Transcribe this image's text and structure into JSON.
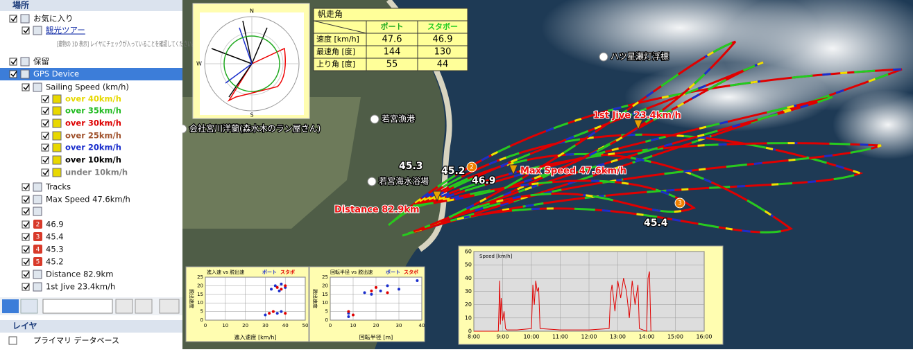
{
  "sidebar": {
    "header": "場所",
    "items": [
      {
        "label": "お気に入り",
        "indent": 0
      },
      {
        "label": "観光ツアー",
        "indent": 1,
        "link": true
      },
      {
        "label": "[建物の 3D 表示] レイヤにチェックが入っていることを確認してください。",
        "indent": 2,
        "note": true
      },
      {
        "label": "保留",
        "indent": 0
      },
      {
        "label": "GPS Device",
        "indent": 0,
        "selected": true
      },
      {
        "label": "Sailing Speed (km/h)",
        "indent": 1
      },
      {
        "label": "over 40km/h",
        "indent": 2,
        "color": "#e6d800"
      },
      {
        "label": "over 35km/h",
        "indent": 2,
        "color": "#22bb22"
      },
      {
        "label": "over 30km/h",
        "indent": 2,
        "color": "#dd0000"
      },
      {
        "label": "over 25km/h",
        "indent": 2,
        "color": "#a0522d"
      },
      {
        "label": "over 20km/h",
        "indent": 2,
        "color": "#1a2ecc"
      },
      {
        "label": "over 10km/h",
        "indent": 2,
        "color": "#000000"
      },
      {
        "label": "under 10km/h",
        "indent": 2,
        "color": "#808080"
      },
      {
        "label": "Tracks",
        "indent": 1
      },
      {
        "label": "Max Speed 47.6km/h",
        "indent": 1
      },
      {
        "label": null,
        "indent": 1
      },
      {
        "label": "46.9",
        "indent": 1,
        "badge": "2"
      },
      {
        "label": "45.4",
        "indent": 1,
        "badge": "3"
      },
      {
        "label": "45.3",
        "indent": 1,
        "badge": "4"
      },
      {
        "label": "45.2",
        "indent": 1,
        "badge": "5"
      },
      {
        "label": "Distance 82.9km",
        "indent": 1
      },
      {
        "label": "1st Jive 23.4km/h",
        "indent": 1
      }
    ],
    "layers_header": "レイヤ",
    "layers_item": "プライマリ データベース"
  },
  "map": {
    "places": [
      {
        "label": "ハツ星瀬灯浮標",
        "x": 870,
        "y": 82
      },
      {
        "label": "若宮漁港",
        "x": 540,
        "y": 172
      },
      {
        "label": "若宮海水浴場",
        "x": 536,
        "y": 262
      },
      {
        "label": "会社宮川洋蘭(森水木のラン屋さん)",
        "x": 263,
        "y": 186
      }
    ],
    "annotations": [
      {
        "label": "1st Jive 23.4km/h",
        "color": "#ee1111"
      },
      {
        "label": "Max Speed 47.6km/h",
        "color": "#ee1111"
      },
      {
        "label": "Distance 82.9km",
        "color": "#ee1111"
      },
      {
        "label": "45.3",
        "color": "#ffffff"
      },
      {
        "label": "45.2",
        "color": "#ffffff"
      },
      {
        "label": "46.9",
        "color": "#ffffff"
      },
      {
        "label": "45.4",
        "color": "#ffffff"
      }
    ],
    "badges": [
      "2",
      "3"
    ]
  },
  "polar": {
    "labels": [
      "N",
      "S",
      "W"
    ]
  },
  "table": {
    "title": "帆走角",
    "columns": [
      "ポート",
      "スタボー"
    ],
    "rows": [
      [
        "速度 [km/h]",
        "47.6",
        "46.9"
      ],
      [
        "最速角 [度]",
        "144",
        "130"
      ],
      [
        "上り角 [度]",
        "55",
        "44"
      ]
    ]
  },
  "charts": [
    {
      "type": "scatter",
      "title": "進入速 vs 脱出速",
      "xlabel": "進入速度 [km/h]",
      "ylabel": "脱出速度",
      "xlim": [
        0,
        50
      ],
      "xticks": [
        0,
        10,
        20,
        30,
        40,
        50
      ],
      "ylim": [
        0,
        25
      ],
      "yticks": [
        0,
        5,
        10,
        15,
        20,
        25
      ],
      "series": [
        {
          "name": "ポート",
          "color": "#1a2ecc",
          "x": [
            33,
            35,
            38,
            37,
            40,
            36,
            38,
            30
          ],
          "values": [
            18,
            20,
            21,
            17,
            19,
            4,
            5,
            3
          ]
        },
        {
          "name": "スタボ",
          "color": "#e00000",
          "x": [
            36,
            40,
            34,
            40,
            32,
            38
          ],
          "values": [
            19,
            20,
            5,
            4,
            4,
            18
          ]
        }
      ]
    },
    {
      "type": "scatter",
      "title": "回転半径 vs 脱出速",
      "xlabel": "回転半径 [m]",
      "ylabel": "脱出速度",
      "xlim": [
        0,
        40
      ],
      "xticks": [
        0,
        10,
        20,
        30,
        40
      ],
      "ylim": [
        0,
        25
      ],
      "yticks": [
        0,
        5,
        10,
        15,
        20,
        25
      ],
      "series": [
        {
          "name": "ポート",
          "color": "#1a2ecc",
          "x": [
            8,
            15,
            18,
            25,
            30,
            38,
            8,
            22
          ],
          "values": [
            4,
            16,
            15,
            20,
            18,
            23,
            2,
            17
          ]
        },
        {
          "name": "スタボ",
          "color": "#e00000",
          "x": [
            8,
            18,
            20,
            10,
            25
          ],
          "values": [
            5,
            17,
            19,
            3,
            16
          ]
        }
      ]
    },
    {
      "type": "line",
      "title": "Speed [km/h]",
      "xlim": [
        8,
        16
      ],
      "xticks": [
        {
          "value": 8,
          "label": "8:00"
        },
        {
          "value": 9,
          "label": "9:00"
        },
        {
          "value": 10,
          "label": "10:00"
        },
        {
          "value": 11,
          "label": "11:00"
        },
        {
          "value": 12,
          "label": "12:00"
        },
        {
          "value": 13,
          "label": "13:00"
        },
        {
          "value": 14,
          "label": "14:00"
        },
        {
          "value": 15,
          "label": "15:00"
        },
        {
          "value": 16,
          "label": "16:00"
        }
      ],
      "ylim": [
        0,
        60
      ],
      "yticks": [
        0,
        10,
        20,
        30,
        40,
        50,
        60
      ],
      "series": [
        {
          "name": null,
          "color": "#e00000",
          "x": [
            8.0,
            8.85,
            8.9,
            8.92,
            8.95,
            9.0,
            9.05,
            9.1,
            9.15,
            9.5,
            10.0,
            10.05,
            10.1,
            10.15,
            10.2,
            10.25,
            10.3,
            11.0,
            12.0,
            12.7,
            12.75,
            12.8,
            12.9,
            13.0,
            13.1,
            13.2,
            13.3,
            13.4,
            13.5,
            13.6,
            13.7,
            13.75,
            14.0,
            14.05,
            14.1,
            14.15
          ],
          "values": [
            0,
            0,
            38,
            5,
            25,
            8,
            15,
            2,
            1,
            1,
            2,
            35,
            20,
            38,
            30,
            33,
            2,
            1,
            1,
            2,
            28,
            35,
            15,
            38,
            25,
            40,
            30,
            10,
            38,
            20,
            35,
            2,
            0,
            40,
            45,
            0
          ]
        }
      ]
    }
  ]
}
